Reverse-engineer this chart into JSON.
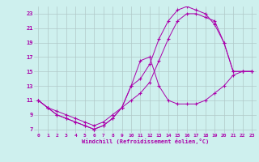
{
  "xlabel": "Windchill (Refroidissement éolien,°C)",
  "bg_color": "#cef0ee",
  "grid_color": "#b0c8c8",
  "line_color": "#aa00aa",
  "xlim": [
    -0.5,
    23.5
  ],
  "ylim": [
    6.5,
    24.0
  ],
  "xticks": [
    0,
    1,
    2,
    3,
    4,
    5,
    6,
    7,
    8,
    9,
    10,
    11,
    12,
    13,
    14,
    15,
    16,
    17,
    18,
    19,
    20,
    21,
    22,
    23
  ],
  "yticks": [
    7,
    9,
    11,
    13,
    15,
    17,
    19,
    21,
    23
  ],
  "line1_x": [
    0,
    1,
    2,
    3,
    4,
    5,
    6,
    7,
    8,
    9,
    10,
    11,
    12,
    13,
    14,
    15,
    16,
    17,
    18,
    19,
    20,
    21,
    22,
    23
  ],
  "line1_y": [
    11,
    10,
    9,
    8.5,
    8,
    7.5,
    7,
    7.5,
    8.5,
    10,
    13,
    16.5,
    17,
    13,
    11,
    10.5,
    10.5,
    10.5,
    11,
    12,
    13,
    14.5,
    15,
    15
  ],
  "line2_x": [
    0,
    1,
    2,
    3,
    4,
    5,
    6,
    7,
    8,
    9,
    10,
    11,
    12,
    13,
    14,
    15,
    16,
    17,
    18,
    19,
    20,
    21,
    22,
    23
  ],
  "line2_y": [
    11,
    10,
    9.5,
    9,
    8.5,
    8,
    7.5,
    8,
    9,
    10,
    11,
    12,
    13.5,
    16.5,
    19.5,
    22,
    23,
    23,
    22.5,
    22,
    19,
    15,
    15,
    15
  ],
  "line3_x": [
    0,
    1,
    2,
    3,
    4,
    5,
    6,
    7,
    8,
    9,
    10,
    11,
    12,
    13,
    14,
    15,
    16,
    17,
    18,
    19,
    20,
    21,
    22,
    23
  ],
  "line3_y": [
    11,
    10,
    9,
    8.5,
    8,
    7.5,
    7,
    7.5,
    8.5,
    10,
    13,
    14,
    16,
    19.5,
    22,
    23.5,
    24,
    23.5,
    23,
    21.5,
    19,
    15,
    15,
    15
  ]
}
